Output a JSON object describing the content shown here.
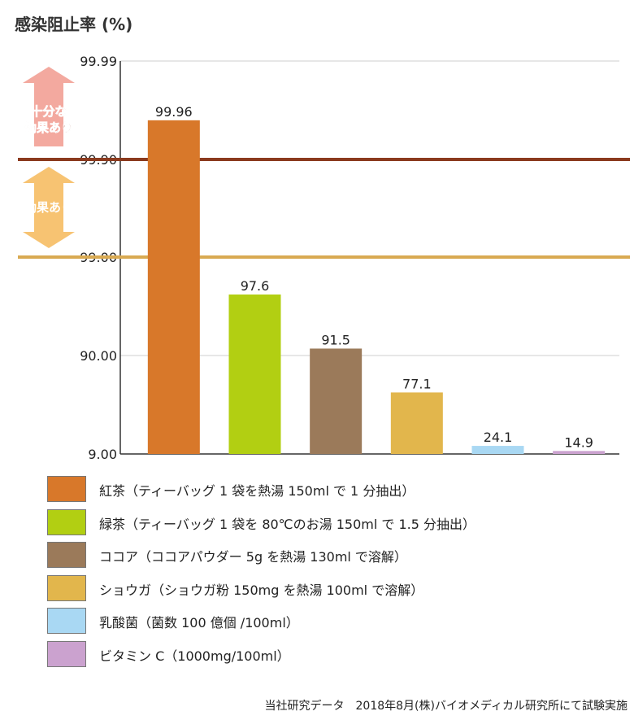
{
  "chart_data": {
    "type": "bar",
    "title": "",
    "ylabel": "感染阻止率 (%)",
    "xlabel": "",
    "y_scale": "log-of-complement",
    "yticks": [
      "99.99",
      "99.90",
      "99.00",
      "90.00",
      "9.00"
    ],
    "ylim": [
      9.0,
      99.99
    ],
    "categories": [
      "紅茶",
      "緑茶",
      "ココア",
      "ショウガ",
      "乳酸菌",
      "ビタミンC"
    ],
    "values": [
      99.96,
      97.6,
      91.5,
      77.1,
      24.1,
      14.9
    ],
    "value_labels": [
      "99.96",
      "97.6",
      "91.5",
      "77.1",
      "24.1",
      "14.9"
    ],
    "colors": [
      "#d8782a",
      "#b2cf12",
      "#9b7a5a",
      "#e2b64c",
      "#a9d8f3",
      "#cba2cf"
    ],
    "thresholds": [
      {
        "value": 99.9,
        "label": "99.90",
        "color": "#8b3a1e",
        "band_label": [
          "十分な",
          "効果あり"
        ],
        "arrow_color": "#f2a49a",
        "label_color": "#8b3a1e"
      },
      {
        "value": 99.0,
        "label": "99.00",
        "color": "#d9aa52",
        "band_label": [
          "効果あり"
        ],
        "arrow_color": "#f7c06a",
        "label_color": "#ffffff"
      }
    ],
    "legend": [
      "紅茶（ティーバッグ 1 袋を熱湯 150ml で 1 分抽出）",
      "緑茶（ティーバッグ 1 袋を 80℃のお湯 150ml で 1.5 分抽出）",
      "ココア（ココアパウダー 5g を熱湯 130ml で溶解）",
      "ショウガ（ショウガ粉 150mg を熱湯 100ml で溶解）",
      "乳酸菌（菌数 100 億個 /100ml）",
      "ビタミン C（1000mg/100ml）"
    ],
    "footnote": "当社研究データ　2018年8月(株)バイオメディカル研究所にて試験実施"
  }
}
